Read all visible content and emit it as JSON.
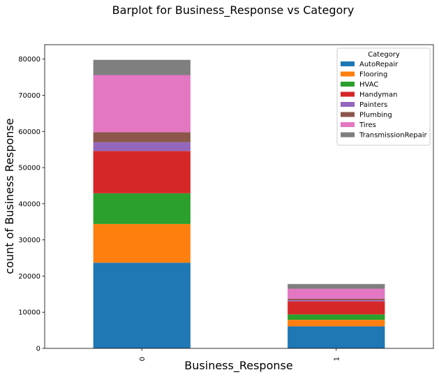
{
  "chart_data": {
    "type": "bar",
    "stacked": true,
    "title": "Barplot for Business_Response vs Category",
    "xlabel": "Business_Response",
    "ylabel": "count of Business Response",
    "categories": [
      "0",
      "1"
    ],
    "ylim": [
      0,
      84000
    ],
    "yticks": [
      0,
      10000,
      20000,
      30000,
      40000,
      50000,
      60000,
      70000,
      80000
    ],
    "ytick_labels": [
      "0",
      "10000",
      "20000",
      "30000",
      "40000",
      "50000",
      "60000",
      "70000",
      "80000"
    ],
    "grid": false,
    "legend": {
      "title": "Category",
      "placement": "top-right"
    },
    "series": [
      {
        "name": "AutoRepair",
        "color": "#1f77b4",
        "values": [
          23700,
          6100
        ]
      },
      {
        "name": "Flooring",
        "color": "#ff7f0e",
        "values": [
          10700,
          1800
        ]
      },
      {
        "name": "HVAC",
        "color": "#2ca02c",
        "values": [
          8500,
          1500
        ]
      },
      {
        "name": "Handyman",
        "color": "#d62728",
        "values": [
          11700,
          3600
        ]
      },
      {
        "name": "Painters",
        "color": "#9467bd",
        "values": [
          2400,
          300
        ]
      },
      {
        "name": "Plumbing",
        "color": "#8c564b",
        "values": [
          2800,
          400
        ]
      },
      {
        "name": "Tires",
        "color": "#e377c2",
        "values": [
          15800,
          2800
        ]
      },
      {
        "name": "TransmissionRepair",
        "color": "#7f7f7f",
        "values": [
          4200,
          1300
        ]
      }
    ]
  }
}
